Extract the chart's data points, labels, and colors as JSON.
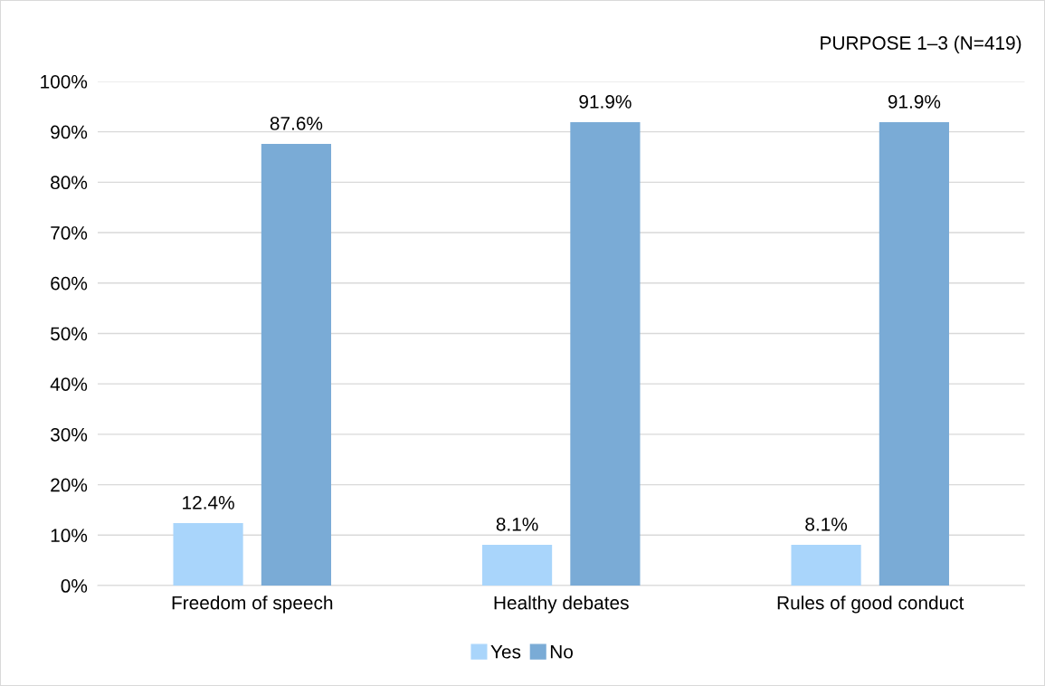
{
  "chart_data": {
    "type": "bar",
    "title": "PURPOSE 1–3 (N=419)",
    "categories": [
      "Freedom of speech",
      "Healthy debates",
      "Rules of good conduct"
    ],
    "series": [
      {
        "name": "Yes",
        "color": "#a9d5fb",
        "values": [
          12.4,
          8.1,
          8.1
        ],
        "value_labels": [
          "12.4%",
          "8.1%",
          "8.1%"
        ]
      },
      {
        "name": "No",
        "color": "#7aabd6",
        "values": [
          87.6,
          91.9,
          91.9
        ],
        "value_labels": [
          "87.6%",
          "91.9%",
          "91.9%"
        ]
      }
    ],
    "ylim": [
      0,
      100
    ],
    "yticks": [
      {
        "value": 0,
        "label": "0%"
      },
      {
        "value": 10,
        "label": "10%"
      },
      {
        "value": 20,
        "label": "20%"
      },
      {
        "value": 30,
        "label": "30%"
      },
      {
        "value": 40,
        "label": "40%"
      },
      {
        "value": 50,
        "label": "50%"
      },
      {
        "value": 60,
        "label": "60%"
      },
      {
        "value": 70,
        "label": "70%"
      },
      {
        "value": 80,
        "label": "80%"
      },
      {
        "value": 90,
        "label": "90%"
      },
      {
        "value": 100,
        "label": "100%"
      }
    ],
    "grid": "y",
    "legend": "bottom"
  }
}
